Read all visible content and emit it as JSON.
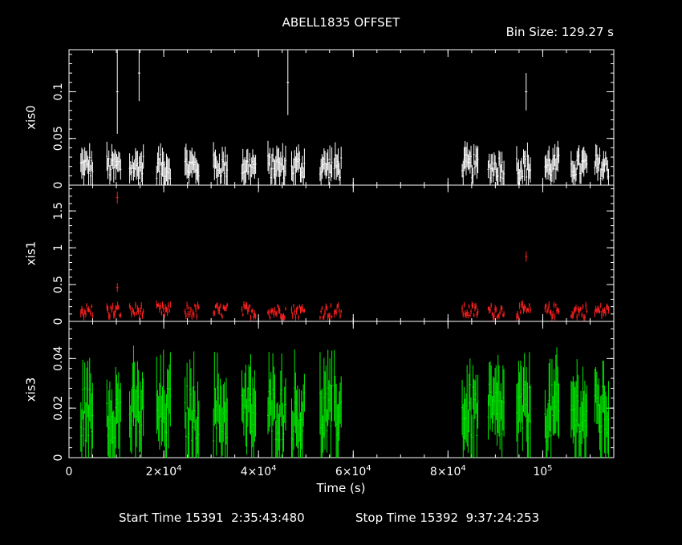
{
  "title": "ABELL1835 OFFSET",
  "bin_size_label": "Bin Size: 129.27 s",
  "footer": {
    "start_label": "Start Time 15391  2:35:43:480",
    "stop_label": "Stop Time 15392  9:37:24:253"
  },
  "colors": {
    "background": "#000000",
    "axes": "#ffffff",
    "xis0": "#ffffff",
    "xis1": "#ff2020",
    "xis3": "#00ee00"
  },
  "chart_data": {
    "type": "scatter",
    "x_axis": {
      "label": "Time (s)",
      "range": [
        0,
        115000
      ],
      "ticks": [
        {
          "value": 0,
          "base": "0",
          "exp": ""
        },
        {
          "value": 20000,
          "base": "2×10",
          "exp": "4"
        },
        {
          "value": 40000,
          "base": "4×10",
          "exp": "4"
        },
        {
          "value": 60000,
          "base": "6×10",
          "exp": "4"
        },
        {
          "value": 80000,
          "base": "8×10",
          "exp": "4"
        },
        {
          "value": 100000,
          "base": "10",
          "exp": "5"
        }
      ]
    },
    "panels": [
      {
        "name": "xis0",
        "color": "#ffffff",
        "ylabel": "xis0",
        "ylim": [
          0,
          0.145
        ],
        "ticks": [
          0,
          0.05,
          0.1
        ],
        "tick_labels": [
          "0",
          "0.05",
          "0.1"
        ],
        "typical_rate": 0.02,
        "typical_error": 0.012,
        "spikes": [
          {
            "x": 10200,
            "y": 0.1,
            "err": 0.045
          },
          {
            "x": 14800,
            "y": 0.12,
            "err": 0.03
          },
          {
            "x": 46200,
            "y": 0.11,
            "err": 0.035
          },
          {
            "x": 96500,
            "y": 0.1,
            "err": 0.02
          }
        ]
      },
      {
        "name": "xis1",
        "color": "#ff2020",
        "ylabel": "xis1",
        "ylim": [
          0,
          1.85
        ],
        "ticks": [
          0,
          0.5,
          1,
          1.5
        ],
        "tick_labels": [
          "0",
          "0.5",
          "1",
          "1.5"
        ],
        "typical_rate": 0.14,
        "typical_error": 0.04,
        "spikes": [
          {
            "x": 10200,
            "y": 1.68,
            "err": 0.08
          },
          {
            "x": 10200,
            "y": 0.46,
            "err": 0.06
          },
          {
            "x": 96500,
            "y": 0.88,
            "err": 0.07
          }
        ]
      },
      {
        "name": "xis3",
        "color": "#00ee00",
        "ylabel": "xis3",
        "ylim": [
          0,
          0.055
        ],
        "ticks": [
          0,
          0.02,
          0.04
        ],
        "tick_labels": [
          "0",
          "0.02",
          "0.04"
        ],
        "typical_rate": 0.018,
        "typical_error": 0.012,
        "spikes": []
      }
    ],
    "good_time_intervals": [
      [
        2500,
        5000
      ],
      [
        8000,
        11000
      ],
      [
        12800,
        15800
      ],
      [
        18500,
        21500
      ],
      [
        24500,
        27500
      ],
      [
        30500,
        33500
      ],
      [
        36500,
        39500
      ],
      [
        42000,
        45800
      ],
      [
        47000,
        49800
      ],
      [
        53000,
        55500
      ],
      [
        56000,
        57500
      ],
      [
        83000,
        86500
      ],
      [
        88500,
        92000
      ],
      [
        94500,
        97500
      ],
      [
        100500,
        103500
      ],
      [
        106000,
        109500
      ],
      [
        111000,
        114000
      ]
    ]
  }
}
